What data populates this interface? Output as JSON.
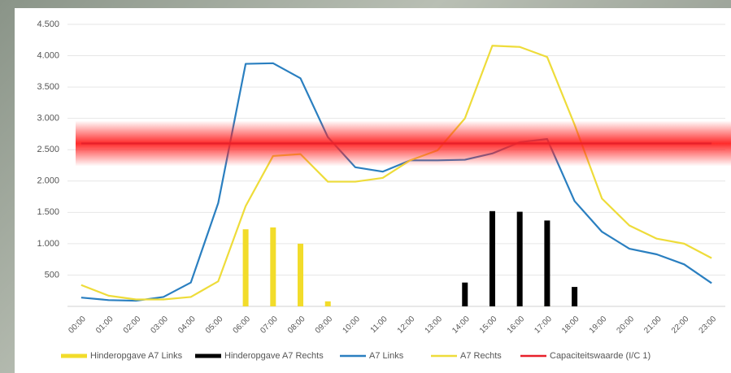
{
  "chart_data": {
    "type": "combo",
    "categories": [
      "00:00",
      "01:00",
      "02:00",
      "03:00",
      "04:00",
      "05:00",
      "06:00",
      "07:00",
      "08:00",
      "09:00",
      "10:00",
      "11:00",
      "12:00",
      "13:00",
      "14:00",
      "15:00",
      "16:00",
      "17:00",
      "18:00",
      "19:00",
      "20:00",
      "21:00",
      "22:00",
      "23:00"
    ],
    "ylim": [
      0,
      4500
    ],
    "yticks": [
      500,
      {
        "value": 1000,
        "label": "1.000"
      },
      {
        "value": 1500,
        "label": "1.500"
      },
      {
        "value": 2000,
        "label": "2.000"
      },
      {
        "value": 2500,
        "label": "2.500"
      },
      {
        "value": 3000,
        "label": "3.000"
      },
      {
        "value": 3500,
        "label": "3.500"
      },
      {
        "value": 4000,
        "label": "4.000"
      },
      {
        "value": 4500,
        "label": "4.500"
      }
    ],
    "grid": true,
    "legend": "bottom",
    "series": [
      {
        "name": "Hinderopgave A7 Links",
        "type": "bar",
        "color": "#f2dc2a",
        "values": [
          0,
          0,
          0,
          0,
          0,
          0,
          1230,
          1260,
          1000,
          80,
          0,
          0,
          0,
          0,
          0,
          0,
          0,
          20,
          0,
          0,
          0,
          0,
          0,
          0
        ]
      },
      {
        "name": "Hinderopgave A7 Rechts",
        "type": "bar",
        "color": "#000000",
        "values": [
          0,
          0,
          0,
          0,
          0,
          0,
          0,
          0,
          0,
          0,
          0,
          0,
          0,
          0,
          380,
          1520,
          1510,
          1370,
          310,
          0,
          0,
          0,
          0,
          0
        ]
      },
      {
        "name": "A7 Links",
        "type": "line",
        "color": "#2a7fc0",
        "values": [
          140,
          100,
          90,
          150,
          380,
          1650,
          3870,
          3880,
          3640,
          2700,
          2220,
          2150,
          2330,
          2330,
          2340,
          2440,
          2620,
          2670,
          1680,
          1190,
          920,
          830,
          670,
          370
        ]
      },
      {
        "name": "A7 Rechts",
        "type": "line",
        "color": "#eedc3a",
        "values": [
          340,
          170,
          110,
          110,
          150,
          400,
          1600,
          2400,
          2430,
          1990,
          1990,
          2050,
          2330,
          2490,
          3000,
          4160,
          4140,
          3980,
          2900,
          1720,
          1290,
          1080,
          1000,
          770
        ]
      },
      {
        "name": "Capaciteitswaarde (I/C 1)",
        "type": "line",
        "color": "#e8202a",
        "values": [
          2600,
          2600,
          2600,
          2600,
          2600,
          2600,
          2600,
          2600,
          2600,
          2600,
          2600,
          2600,
          2600,
          2600,
          2600,
          2600,
          2600,
          2600,
          2600,
          2600,
          2600,
          2600,
          2600,
          2600
        ]
      }
    ]
  }
}
